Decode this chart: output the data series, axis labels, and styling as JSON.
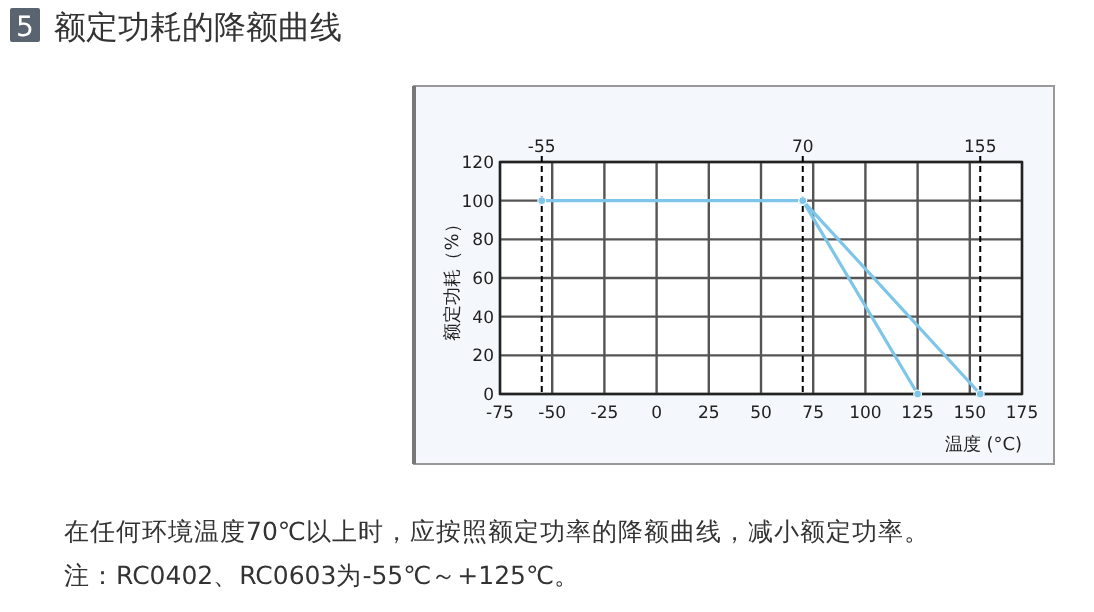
{
  "chart_data": {
    "type": "line",
    "title": "5 额定功耗的降额曲线",
    "xlabel": "温度 (°C)",
    "ylabel": "额定功耗（%）",
    "series": [
      {
        "color": "#7ec6e9",
        "x": [
          -55,
          70,
          155
        ],
        "values": [
          100,
          100,
          0
        ]
      },
      {
        "color": "#7ec6e9",
        "x": [
          70,
          125
        ],
        "values": [
          100,
          0
        ]
      }
    ],
    "xlim": [
      -75,
      175
    ],
    "xticks": [
      -75,
      -50,
      -25,
      0,
      25,
      50,
      75,
      100,
      125,
      150,
      175
    ],
    "ylim": [
      0,
      120
    ],
    "yticks": [
      0,
      20,
      40,
      60,
      80,
      100,
      120
    ],
    "grid": true,
    "marker": "circle",
    "line_style": "solid",
    "ref_lines": [
      {
        "axis": "x",
        "value": -55,
        "label": "-55",
        "line_style": "dashed",
        "color": "#000000"
      },
      {
        "axis": "x",
        "value": 70,
        "label": "70",
        "line_style": "dashed",
        "color": "#000000"
      },
      {
        "axis": "x",
        "value": 155,
        "label": "155",
        "line_style": "dashed",
        "color": "#000000"
      }
    ],
    "annotations": [
      "在任何环境温度70℃以上时，应按照额定功率的降额曲线，减小额定功率。",
      "注：RC0402、RC0603为-55℃～+125℃。"
    ]
  }
}
